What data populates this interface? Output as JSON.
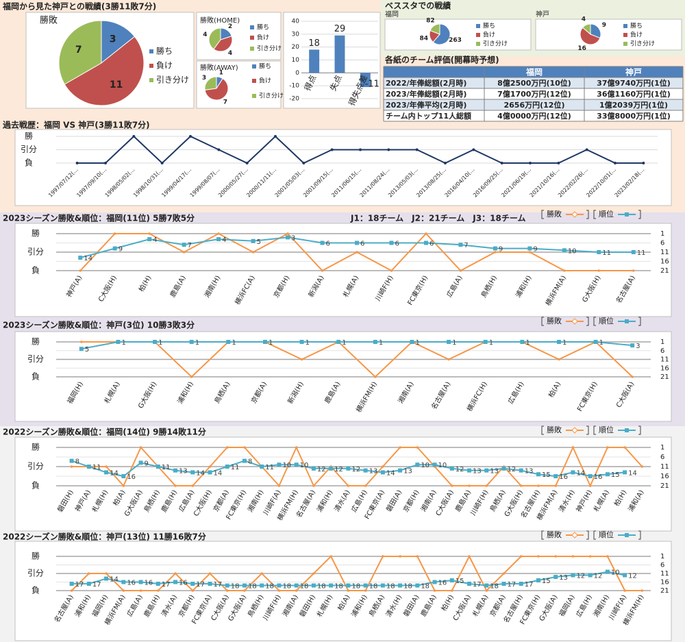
{
  "header": {
    "title": "福岡から見た神戸との戦績(3勝11敗7分)",
    "venue_title": "ベススタでの戦績"
  },
  "table": {
    "title": "各紙のチーム評価(開幕時予想)",
    "columns": [
      "福岡",
      "神戸"
    ],
    "rows": [
      [
        "2022/年俸総額(2月時)",
        "8億2500万円(10位)",
        "37億9740万円(1位)"
      ],
      [
        "2023/年俸総額(2月時)",
        "7億1700万円(12位)",
        "36億1160万円(1位)"
      ],
      [
        "2023/年俸平均(2月時)",
        "2656万円(12位)",
        "1億2039万円(1位)"
      ],
      [
        "チーム内トップ11人総額",
        "4億0000万円(12位)",
        "33億8000万円(1位)"
      ]
    ]
  },
  "chart_data": [
    {
      "type": "pie",
      "title": "勝敗",
      "categories": [
        "勝ち",
        "負け",
        "引き分け"
      ],
      "values": [
        3,
        11,
        7
      ],
      "colors": [
        "#4f81bd",
        "#c0504d",
        "#9bbb59"
      ]
    },
    {
      "type": "pie",
      "title": "勝敗(HOME)",
      "categories": [
        "勝ち",
        "負け",
        "引き分け"
      ],
      "values": [
        2,
        4,
        4
      ],
      "colors": [
        "#4f81bd",
        "#c0504d",
        "#9bbb59"
      ]
    },
    {
      "type": "pie",
      "title": "勝敗(AWAY)",
      "categories": [
        "勝ち",
        "負け",
        "引き分け"
      ],
      "values": [
        1,
        7,
        3
      ],
      "colors": [
        "#4f81bd",
        "#c0504d",
        "#9bbb59"
      ]
    },
    {
      "type": "bar",
      "categories": [
        "得点",
        "失点",
        "得失点差"
      ],
      "values": [
        18,
        29,
        -11
      ],
      "color": "#4f81bd",
      "ylim": [
        -20,
        40
      ],
      "yticks": [
        -20,
        -10,
        0,
        10,
        20,
        30,
        40
      ],
      "data_labels": true
    },
    {
      "type": "pie",
      "title": "福岡",
      "categories": [
        "勝ち",
        "負け",
        "引き分け"
      ],
      "values": [
        263,
        84,
        82
      ],
      "colors": [
        "#4f81bd",
        "#c0504d",
        "#9bbb59"
      ]
    },
    {
      "type": "pie",
      "title": "神戸",
      "categories": [
        "勝ち",
        "負け",
        "引き分け"
      ],
      "values": [
        9,
        16,
        4
      ],
      "colors": [
        "#4f81bd",
        "#c0504d",
        "#9bbb59"
      ]
    },
    {
      "type": "line",
      "title": "過去戦歴：福岡 VS 神戸(3勝11敗7分)",
      "categories": [
        "1997/07/12(…",
        "1997/09/10(…",
        "1998/05/02(…",
        "1998/10/31(…",
        "1999/04/17(…",
        "1999/08/07(…",
        "2000/05/27(…",
        "2000/11/11(…",
        "2001/05/03(…",
        "2001/09/15(…",
        "2011/06/15(…",
        "2011/08/24(…",
        "2013/05/03(…",
        "2013/08/25(…",
        "2016/04/10(…",
        "2016/09/25(…",
        "2021/06/19(…",
        "2021/10/16(…",
        "2022/02/26(…",
        "2022/10/01(…",
        "2023/02/18(…"
      ],
      "series": [
        {
          "color": "#1f3864",
          "values": [
            0,
            0,
            2,
            0,
            2,
            1,
            0,
            2,
            0,
            1,
            1,
            1,
            1,
            0,
            1,
            0,
            0,
            0,
            1,
            0,
            0
          ]
        }
      ],
      "ylim": [
        0,
        2
      ],
      "yticks": [
        {
          "value": 0,
          "label": "負"
        },
        {
          "value": 1,
          "label": "引分"
        },
        {
          "value": 2,
          "label": "勝"
        }
      ],
      "grid": true
    },
    {
      "type": "line",
      "title": "2023シーズン勝敗&順位：福岡(11位) 5勝7敗5分",
      "subtitle": "J1：18チーム　J2：21チーム　J3：18チーム",
      "categories": [
        "神戸(A)",
        "C大阪(H)",
        "柏(H)",
        "鹿島(A)",
        "湘南(H)",
        "横浜FC(A)",
        "京都(H)",
        "新潟(A)",
        "札幌(A)",
        "川崎F(H)",
        "FC東京(H)",
        "広島(A)",
        "鳥栖(H)",
        "浦和(H)",
        "横浜FM(A)",
        "G大阪(H)",
        "名古屋(A)"
      ],
      "series": [
        {
          "name": "勝敗",
          "color": "#f79646",
          "values": [
            0,
            2,
            2,
            1,
            2,
            1,
            2,
            0,
            1,
            0,
            2,
            0,
            1,
            1,
            0,
            0,
            0
          ]
        },
        {
          "name": "順位",
          "color": "#4bacc6",
          "axis": "y2",
          "data_labels": true,
          "values": [
            14,
            9,
            4,
            7,
            4,
            5,
            3,
            6,
            6,
            6,
            6,
            7,
            9,
            9,
            10,
            11,
            11
          ]
        }
      ],
      "ylim": [
        0,
        2
      ],
      "yticks": [
        {
          "value": 0,
          "label": "負"
        },
        {
          "value": 1,
          "label": "引分"
        },
        {
          "value": 2,
          "label": "勝"
        }
      ],
      "y2lim": [
        21,
        1
      ],
      "y2ticks": [
        1,
        6,
        11,
        16,
        21
      ],
      "grid": true,
      "legend": "top-right"
    },
    {
      "type": "line",
      "title": "2023シーズン勝敗&順位：神戸(3位) 10勝3敗3分",
      "categories": [
        "福岡(H)",
        "札幌(A)",
        "G大阪(H)",
        "浦和(H)",
        "鳥栖(A)",
        "京都(A)",
        "新潟(H)",
        "鹿島(A)",
        "横浜FM(H)",
        "湘南(A)",
        "名古屋(A)",
        "横浜FC(H)",
        "広島(H)",
        "柏(A)",
        "FC東京(H)",
        "C大阪(A)"
      ],
      "series": [
        {
          "name": "勝敗",
          "color": "#f79646",
          "values": [
            2,
            2,
            2,
            0,
            2,
            2,
            1,
            2,
            0,
            2,
            1,
            2,
            2,
            1,
            2,
            0
          ]
        },
        {
          "name": "順位",
          "color": "#4bacc6",
          "axis": "y2",
          "data_labels": true,
          "values": [
            5,
            1,
            1,
            1,
            1,
            1,
            1,
            1,
            1,
            1,
            1,
            1,
            1,
            1,
            1,
            3
          ]
        }
      ],
      "ylim": [
        0,
        2
      ],
      "yticks": [
        {
          "value": 0,
          "label": "負"
        },
        {
          "value": 1,
          "label": "引分"
        },
        {
          "value": 2,
          "label": "勝"
        }
      ],
      "y2lim": [
        21,
        1
      ],
      "y2ticks": [
        1,
        6,
        11,
        16,
        21
      ],
      "grid": true,
      "legend": "top-right"
    },
    {
      "type": "line",
      "title": "2022シーズン勝敗&順位：福岡(14位) 9勝14敗11分",
      "categories": [
        "磐田(H)",
        "神戸(A)",
        "札幌(H)",
        "柏(A)",
        "G大阪(A)",
        "鳥栖(H)",
        "鹿島(H)",
        "広島(A)",
        "C大阪(H)",
        "京都(A)",
        "FC東京(H)",
        "湘南(H)",
        "川崎F(A)",
        "横浜FM(H)",
        "名古屋(A)",
        "浦和(H)",
        "清水(A)",
        "広島(H)",
        "FC東京(A)",
        "磐田(A)",
        "京都(H)",
        "湘南(A)",
        "C大阪(A)",
        "鹿島(A)",
        "川崎F(H)",
        "鳥栖(A)",
        "G大阪(H)",
        "名古屋(H)",
        "横浜FM(A)",
        "清水(H)",
        "神戸(H)",
        "札幌(A)",
        "柏(H)",
        "浦和(A)"
      ],
      "series": [
        {
          "name": "勝敗",
          "color": "#f79646",
          "values": [
            1,
            1,
            1,
            0,
            2,
            1,
            0,
            0,
            1,
            2,
            2,
            1,
            0,
            2,
            0,
            1,
            0,
            0,
            1,
            2,
            2,
            1,
            0,
            0,
            0,
            1,
            0,
            0,
            0,
            2,
            0,
            2,
            2,
            1
          ]
        },
        {
          "name": "順位",
          "color": "#4bacc6",
          "axis": "y2",
          "data_labels": true,
          "values": [
            8,
            11,
            14,
            16,
            9,
            11,
            13,
            14,
            14,
            11,
            8,
            11,
            10,
            10,
            12,
            12,
            12,
            13,
            14,
            13,
            10,
            10,
            12,
            13,
            13,
            12,
            13,
            15,
            16,
            14,
            16,
            15,
            14,
            null
          ]
        }
      ],
      "ylim": [
        0,
        2
      ],
      "yticks": [
        {
          "value": 0,
          "label": "負"
        },
        {
          "value": 1,
          "label": "引分"
        },
        {
          "value": 2,
          "label": "勝"
        }
      ],
      "y2lim": [
        21,
        1
      ],
      "y2ticks": [
        1,
        6,
        11,
        16,
        21
      ],
      "grid": true,
      "legend": "top-right"
    },
    {
      "type": "line",
      "title": "2022シーズン勝敗&順位：神戸(13位) 11勝16敗7分",
      "categories": [
        "名古屋(A)",
        "浦和(H)",
        "福岡(H)",
        "横浜FM(A)",
        "広島(A)",
        "鹿島(H)",
        "清水(A)",
        "京都(H)",
        "FC東京(A)",
        "C大阪(A)",
        "G大阪(A)",
        "鳥栖(H)",
        "川崎F(H)",
        "湘南(A)",
        "磐田(H)",
        "札幌(H)",
        "柏(A)",
        "浦和(H)",
        "鳥栖(A)",
        "清水(H)",
        "磐田(A)",
        "鹿島(A)",
        "柏(H)",
        "C大阪(A)",
        "札幌(A)",
        "京都(A)",
        "名古屋(H)",
        "FC東京(H)",
        "G大阪(A)",
        "福岡(A)",
        "広島(H)",
        "湘南(H)",
        "川崎F(A)",
        "横浜FM(H)"
      ],
      "series": [
        {
          "name": "勝敗",
          "color": "#f79646",
          "values": [
            0,
            1,
            1,
            0,
            0,
            0,
            1,
            0,
            1,
            0,
            0,
            1,
            0,
            0,
            1,
            2,
            0,
            0,
            2,
            2,
            2,
            0,
            0,
            2,
            0,
            1,
            2,
            2,
            2,
            2,
            2,
            2,
            0,
            0
          ]
        },
        {
          "name": "順位",
          "color": "#4bacc6",
          "axis": "y2",
          "data_labels": true,
          "values": [
            17,
            17,
            14,
            16,
            16,
            17,
            16,
            17,
            17,
            18,
            18,
            18,
            18,
            18,
            18,
            18,
            18,
            18,
            18,
            18,
            18,
            16,
            15,
            17,
            18,
            17,
            17,
            15,
            13,
            12,
            12,
            10,
            12,
            null
          ]
        }
      ],
      "ylim": [
        0,
        2
      ],
      "yticks": [
        {
          "value": 0,
          "label": "負"
        },
        {
          "value": 1,
          "label": "引分"
        },
        {
          "value": 2,
          "label": "勝"
        }
      ],
      "y2lim": [
        21,
        1
      ],
      "y2ticks": [
        1,
        6,
        11,
        16,
        21
      ],
      "grid": true,
      "legend": "top-right"
    }
  ]
}
